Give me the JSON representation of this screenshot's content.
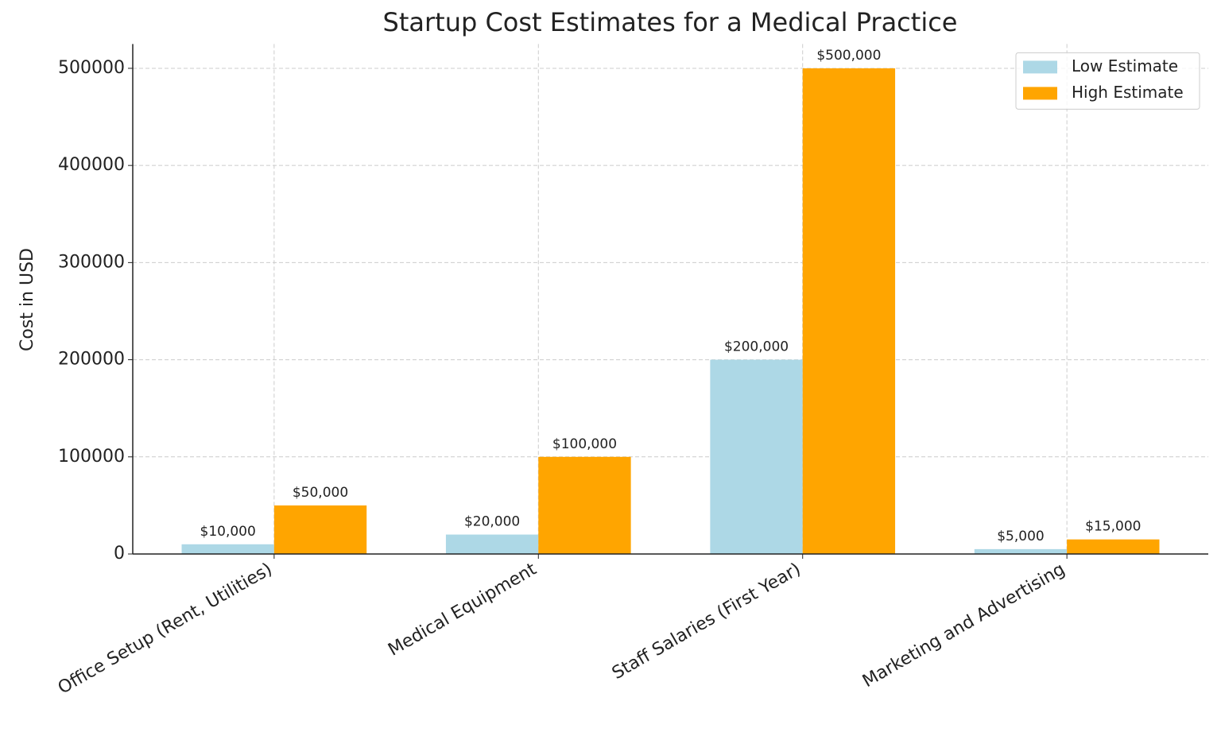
{
  "chart_data": {
    "type": "bar",
    "title": "Startup Cost Estimates for a Medical Practice",
    "ylabel": "Cost in USD",
    "categories": [
      "Office Setup (Rent, Utilities)",
      "Medical Equipment",
      "Staff Salaries (First Year)",
      "Marketing and Advertising"
    ],
    "series": [
      {
        "name": "Low Estimate",
        "color": "#add8e6",
        "values": [
          10000,
          20000,
          200000,
          5000
        ],
        "value_labels": [
          "$10,000",
          "$20,000",
          "$200,000",
          "$5,000"
        ]
      },
      {
        "name": "High Estimate",
        "color": "#ffa500",
        "values": [
          50000,
          100000,
          500000,
          15000
        ],
        "value_labels": [
          "$50,000",
          "$100,000",
          "$500,000",
          "$15,000"
        ]
      }
    ],
    "ylim": [
      0,
      525000
    ],
    "yticks": [
      0,
      100000,
      200000,
      300000,
      400000,
      500000
    ],
    "grid": true,
    "legend": "upper right"
  }
}
